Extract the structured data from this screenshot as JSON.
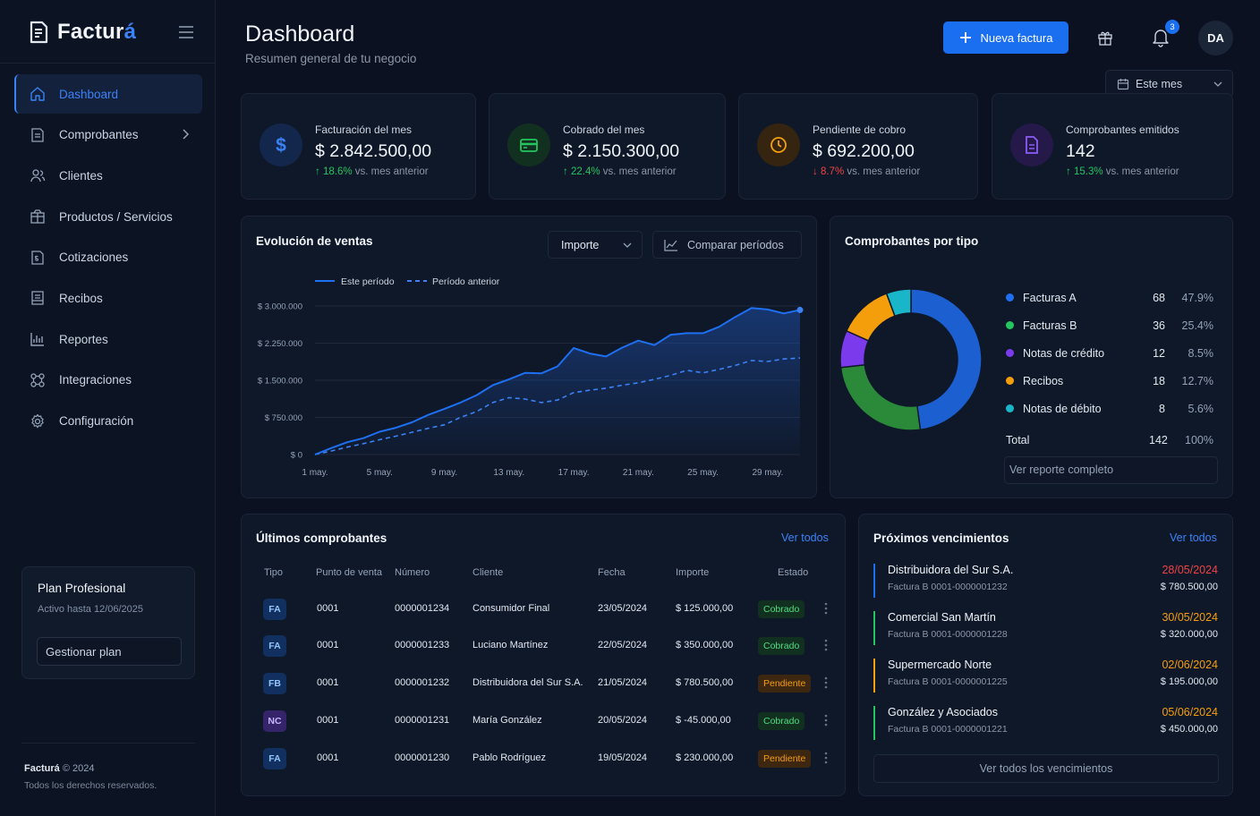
{
  "brand": {
    "name_main": "Factur",
    "name_accent": "á"
  },
  "sidebar": {
    "items": [
      {
        "label": "Dashboard",
        "icon": "home-icon"
      },
      {
        "label": "Comprobantes",
        "icon": "document-icon"
      },
      {
        "label": "Clientes",
        "icon": "users-icon"
      },
      {
        "label": "Productos / Servicios",
        "icon": "box-icon"
      },
      {
        "label": "Cotizaciones",
        "icon": "quote-icon"
      },
      {
        "label": "Recibos",
        "icon": "receipt-icon"
      },
      {
        "label": "Reportes",
        "icon": "bar-chart-icon"
      },
      {
        "label": "Integraciones",
        "icon": "integrations-icon"
      },
      {
        "label": "Configuración",
        "icon": "gear-icon"
      }
    ],
    "plan": {
      "title": "Plan Profesional",
      "subtitle": "Activo hasta 12/06/2025",
      "button": "Gestionar plan"
    },
    "footer": {
      "brand": "Facturá",
      "year": "© 2024",
      "rights": "Todos los derechos reservados."
    }
  },
  "header": {
    "title": "Dashboard",
    "subtitle": "Resumen general de tu negocio",
    "new_invoice": "Nueva factura",
    "notifications_count": "3",
    "avatar": "DA",
    "period_select": "Este mes"
  },
  "kpis": [
    {
      "label": "Facturación del mes",
      "value": "$ 2.842.500,00",
      "delta": "18.6%",
      "delta_dir": "up",
      "suffix": "vs. mes anterior",
      "icon": "dollar-icon",
      "color": "#3b82f6"
    },
    {
      "label": "Cobrado del mes",
      "value": "$ 2.150.300,00",
      "delta": "22.4%",
      "delta_dir": "up",
      "suffix": "vs. mes anterior",
      "icon": "card-icon",
      "color": "#22c55e"
    },
    {
      "label": "Pendiente de cobro",
      "value": "$ 692.200,00",
      "delta": "8.7%",
      "delta_dir": "down",
      "suffix": "vs. mes anterior",
      "icon": "clock-icon",
      "color": "#f59e0b"
    },
    {
      "label": "Comprobantes emitidos",
      "value": "142",
      "delta": "15.3%",
      "delta_dir": "up",
      "suffix": "vs. mes anterior",
      "icon": "file-icon",
      "color": "#8b5cf6"
    }
  ],
  "sales_chart": {
    "title": "Evolución de ventas",
    "metric_select": "Importe",
    "compare_button": "Comparar períodos",
    "chart_data": {
      "type": "line",
      "x": [
        1,
        2,
        3,
        4,
        5,
        6,
        7,
        8,
        9,
        10,
        11,
        12,
        13,
        14,
        15,
        16,
        17,
        18,
        19,
        20,
        21,
        22,
        23,
        24,
        25,
        26,
        27,
        28,
        29,
        30,
        31
      ],
      "x_tick_labels": [
        "1 may.",
        "5 may.",
        "9 may.",
        "13 may.",
        "17 may.",
        "21 may.",
        "25 may.",
        "29 may."
      ],
      "x_tick_values": [
        1,
        5,
        9,
        13,
        17,
        21,
        25,
        29
      ],
      "y_tick_labels": [
        "$ 0",
        "$ 750.000",
        "$ 1.500.000",
        "$ 2.250.000",
        "$ 3.000.000"
      ],
      "y_tick_values": [
        0,
        750000,
        1500000,
        2250000,
        3000000
      ],
      "ylim": [
        0,
        3000000
      ],
      "series": [
        {
          "name": "Este período",
          "color": "#1e6ff1",
          "style": "solid",
          "values": [
            0,
            130000,
            250000,
            330000,
            460000,
            540000,
            650000,
            800000,
            920000,
            1050000,
            1200000,
            1400000,
            1520000,
            1650000,
            1640000,
            1780000,
            2150000,
            2040000,
            1980000,
            2160000,
            2300000,
            2210000,
            2420000,
            2450000,
            2450000,
            2580000,
            2780000,
            2960000,
            2930000,
            2850000,
            2920000
          ]
        },
        {
          "name": "Período anterior",
          "color": "#3b82f6",
          "style": "dashed",
          "values": [
            0,
            70000,
            150000,
            220000,
            300000,
            370000,
            450000,
            530000,
            600000,
            750000,
            870000,
            1050000,
            1150000,
            1120000,
            1050000,
            1100000,
            1250000,
            1300000,
            1340000,
            1400000,
            1450000,
            1520000,
            1600000,
            1700000,
            1650000,
            1720000,
            1800000,
            1900000,
            1880000,
            1930000,
            1950000
          ]
        }
      ]
    }
  },
  "donut": {
    "title": "Comprobantes por tipo",
    "chart_data": {
      "type": "pie",
      "categories": [
        "Facturas A",
        "Facturas B",
        "Notas de crédito",
        "Recibos",
        "Notas de débito"
      ],
      "values": [
        68,
        36,
        12,
        18,
        8
      ],
      "percents": [
        "47.9%",
        "25.4%",
        "8.5%",
        "12.7%",
        "5.6%"
      ],
      "colors": [
        "#1c5fd1",
        "#2a8a3a",
        "#7c3aed",
        "#f59e0b",
        "#19b6c9"
      ]
    },
    "total_label": "Total",
    "total_count": "142",
    "total_pct": "100%",
    "report_button": "Ver reporte completo"
  },
  "latest": {
    "title": "Últimos comprobantes",
    "view_all": "Ver todos",
    "columns": [
      "Tipo",
      "Punto de venta",
      "Número",
      "Cliente",
      "Fecha",
      "Importe",
      "Estado"
    ],
    "rows": [
      {
        "tipo": "FA",
        "pv": "0001",
        "numero": "0000001234",
        "cliente": "Consumidor Final",
        "fecha": "23/05/2024",
        "importe": "$ 125.000,00",
        "estado": "Cobrado"
      },
      {
        "tipo": "FA",
        "pv": "0001",
        "numero": "0000001233",
        "cliente": "Luciano Martínez",
        "fecha": "22/05/2024",
        "importe": "$ 350.000,00",
        "estado": "Cobrado"
      },
      {
        "tipo": "FB",
        "pv": "0001",
        "numero": "0000001232",
        "cliente": "Distribuidora del Sur S.A.",
        "fecha": "21/05/2024",
        "importe": "$ 780.500,00",
        "estado": "Pendiente"
      },
      {
        "tipo": "NC",
        "pv": "0001",
        "numero": "0000001231",
        "cliente": "María González",
        "fecha": "20/05/2024",
        "importe": "$ -45.000,00",
        "estado": "Cobrado"
      },
      {
        "tipo": "FA",
        "pv": "0001",
        "numero": "0000001230",
        "cliente": "Pablo Rodríguez",
        "fecha": "19/05/2024",
        "importe": "$ 230.000,00",
        "estado": "Pendiente"
      }
    ]
  },
  "upcoming": {
    "title": "Próximos vencimientos",
    "view_all": "Ver todos",
    "items": [
      {
        "name": "Distribuidora del Sur S.A.",
        "doc": "Factura B 0001-0000001232",
        "date": "28/05/2024",
        "amount": "$ 780.500,00",
        "color": "#ef4444",
        "bar": "#1a6ef0"
      },
      {
        "name": "Comercial San Martín",
        "doc": "Factura B 0001-0000001228",
        "date": "30/05/2024",
        "amount": "$ 320.000,00",
        "color": "#f59e0b",
        "bar": "#22c55e"
      },
      {
        "name": "Supermercado Norte",
        "doc": "Factura B 0001-0000001225",
        "date": "02/06/2024",
        "amount": "$ 195.000,00",
        "color": "#f59e0b",
        "bar": "#f59e0b"
      },
      {
        "name": "González y Asociados",
        "doc": "Factura B 0001-0000001221",
        "date": "05/06/2024",
        "amount": "$ 450.000,00",
        "color": "#f59e0b",
        "bar": "#22c55e"
      }
    ],
    "view_all_button": "Ver todos los vencimientos"
  }
}
